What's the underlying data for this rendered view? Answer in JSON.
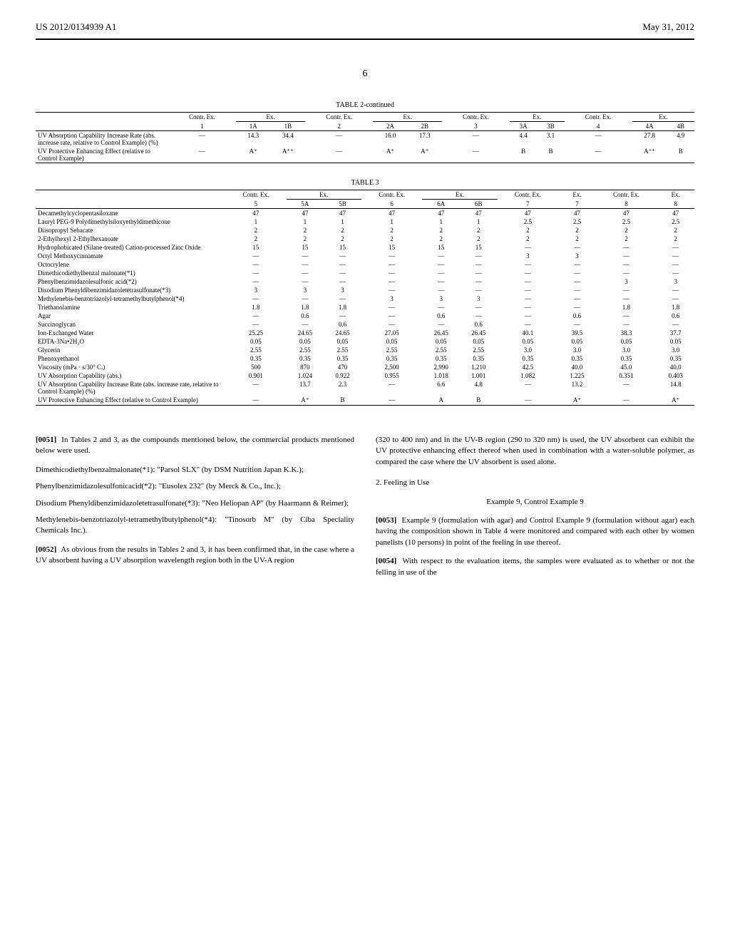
{
  "header": {
    "patent_number": "US 2012/0134939 A1",
    "date": "May 31, 2012",
    "page": "6"
  },
  "table2": {
    "title": "TABLE 2-continued",
    "group_headers": [
      "Contr. Ex.",
      "Ex.",
      "Contr. Ex.",
      "Ex.",
      "Contr. Ex.",
      "Ex.",
      "Contr. Ex.",
      "Ex."
    ],
    "col_nums": [
      "1",
      "1A",
      "1B",
      "2",
      "2A",
      "2B",
      "3",
      "3A",
      "3B",
      "4",
      "4A",
      "4B"
    ],
    "rows": [
      {
        "label": "UV Absorption Capability Increase Rate (abs. increase rate, relative to Control Example) (%)",
        "values": [
          "—",
          "14.3",
          "34.4",
          "—",
          "16.0",
          "17.3",
          "—",
          "4.4",
          "3.1",
          "—",
          "27.8",
          "4.9"
        ]
      },
      {
        "label": "UV Protective Enhancing Effect (relative to Control Example)",
        "values": [
          "—",
          "A⁺",
          "A⁺⁺",
          "—",
          "A⁺",
          "A⁺",
          "—",
          "B",
          "B",
          "—",
          "A⁺⁺",
          "B"
        ]
      }
    ]
  },
  "table3": {
    "title": "TABLE 3",
    "group_headers": [
      "Contr. Ex.",
      "Ex.",
      "Contr. Ex.",
      "Ex.",
      "Contr. Ex.",
      "Ex.",
      "Contr. Ex.",
      "Ex."
    ],
    "col_nums": [
      "5",
      "5A",
      "5B",
      "6",
      "6A",
      "6B",
      "7",
      "7",
      "8",
      "8"
    ],
    "rows": [
      {
        "label": "Decamethylcyclopentasiloxane",
        "values": [
          "47",
          "47",
          "47",
          "47",
          "47",
          "47",
          "47",
          "47",
          "47",
          "47"
        ]
      },
      {
        "label": "Lauryl PEG-9 Polydimethylsiloxyethyldimethicone",
        "values": [
          "1",
          "1",
          "1",
          "1",
          "1",
          "1",
          "2.5",
          "2.5",
          "2.5",
          "2.5"
        ]
      },
      {
        "label": "Diisopropyl Sebacate",
        "values": [
          "2",
          "2",
          "2",
          "2",
          "2",
          "2",
          "2",
          "2",
          "2",
          "2"
        ]
      },
      {
        "label": "2-Ethylhexyl 2-Ethylhexanoate",
        "values": [
          "2",
          "2",
          "2",
          "2",
          "2",
          "2",
          "2",
          "2",
          "2",
          "2"
        ]
      },
      {
        "label": "Hydrophobicated (Silane-treated) Cation-processed Zinc Oxide",
        "values": [
          "15",
          "15",
          "15",
          "15",
          "15",
          "15",
          "—",
          "—",
          "—",
          "—"
        ]
      },
      {
        "label": "Octyl Methoxycinnamate",
        "values": [
          "—",
          "—",
          "—",
          "—",
          "—",
          "—",
          "3",
          "3",
          "—",
          "—"
        ]
      },
      {
        "label": "Octocrylene",
        "values": [
          "—",
          "—",
          "—",
          "—",
          "—",
          "—",
          "—",
          "—",
          "—",
          "—"
        ]
      },
      {
        "label": "Dimethicodiethylbenzal malonate(*1)",
        "values": [
          "—",
          "—",
          "—",
          "—",
          "—",
          "—",
          "—",
          "—",
          "—",
          "—"
        ]
      },
      {
        "label": "Phenylbenzimidazolesulfonic acid(*2)",
        "values": [
          "—",
          "—",
          "—",
          "—",
          "—",
          "—",
          "—",
          "—",
          "3",
          "3"
        ]
      },
      {
        "label": "Disodium Phenyldibenzimidazoletetrasulfonate(*3)",
        "values": [
          "3",
          "3",
          "3",
          "—",
          "—",
          "—",
          "—",
          "—",
          "—",
          "—"
        ]
      },
      {
        "label": "Methylenebis-benzotriazolyl-tetramethylbutylphenol(*4)",
        "values": [
          "—",
          "—",
          "—",
          "3",
          "3",
          "3",
          "—",
          "—",
          "—",
          "—"
        ]
      },
      {
        "label": "Triethanolamine",
        "values": [
          "1.8",
          "1.8",
          "1.8",
          "—",
          "—",
          "—",
          "—",
          "—",
          "1.8",
          "1.8"
        ]
      },
      {
        "label": "Agar",
        "values": [
          "—",
          "0.6",
          "—",
          "—",
          "0.6",
          "—",
          "—",
          "0.6",
          "—",
          "0.6"
        ]
      },
      {
        "label": "Succinoglycan",
        "values": [
          "—",
          "—",
          "0.6",
          "—",
          "—",
          "0.6",
          "—",
          "—",
          "—",
          "—"
        ]
      },
      {
        "label": "Ion-Exchanged Water",
        "values": [
          "25.25",
          "24.65",
          "24.65",
          "27.05",
          "26.45",
          "26.45",
          "40.1",
          "39.5",
          "38.3",
          "37.7"
        ]
      },
      {
        "label": "EDTA-3Na•2H₂O",
        "values": [
          "0.05",
          "0.05",
          "0.05",
          "0.05",
          "0.05",
          "0.05",
          "0.05",
          "0.05",
          "0.05",
          "0.05"
        ]
      },
      {
        "label": "Glycerin",
        "values": [
          "2.55",
          "2.55",
          "2.55",
          "2.55",
          "2.55",
          "2.55",
          "3.0",
          "3.0",
          "3.0",
          "3.0"
        ]
      },
      {
        "label": "Phenoxyethanol",
        "values": [
          "0.35",
          "0.35",
          "0.35",
          "0.35",
          "0.35",
          "0.35",
          "0.35",
          "0.35",
          "0.35",
          "0.35"
        ]
      },
      {
        "label": "Viscosity (mPa · s/30° C.)",
        "values": [
          "500",
          "870",
          "470",
          "2,500",
          "2,990",
          "1,210",
          "42.5",
          "40.0",
          "45.0",
          "40.0"
        ]
      },
      {
        "label": "UV Absorption Capability (abs.)",
        "values": [
          "0.901",
          "1.024",
          "0.922",
          "0.955",
          "1.018",
          "1.001",
          "1.082",
          "1.225",
          "0.351",
          "0.403"
        ]
      },
      {
        "label": "UV Absorption Capability Increase Rate (abs. increase rate, relative to Control Example) (%)",
        "values": [
          "—",
          "13.7",
          "2.3",
          "—",
          "6.6",
          "4.8",
          "—",
          "13.2",
          "—",
          "14.8"
        ]
      },
      {
        "label": "UV Protective Enhancing Effect (relative to Control Example)",
        "values": [
          "—",
          "A⁺",
          "B",
          "—",
          "A",
          "B",
          "—",
          "A⁺",
          "—",
          "A⁺"
        ]
      }
    ]
  },
  "body": {
    "p0051": "In Tables 2 and 3, as the compounds mentioned below, the commercial products mentioned below were used.",
    "compound1": "Dimethicodiethylbenzalmalonate(*1): \"Parsol SLX\" (by DSM Nutrition Japan K.K.);",
    "compound2": "Phenylbenzimidazolesulfonicacid(*2): \"Eusolex 232\" (by Merck & Co., Inc.);",
    "compound3": "Disodium Phenyldibenzimidazoletetrasulfonate(*3): \"Neo Heliopan AP\" (by Haarmann & Reimer);",
    "compound4": "Methylenebis-benzotriazolyl-tetramethylbutylphenol(*4): \"Tinosorb M\" (by Ciba Speciality Chemicals Inc.).",
    "p0052": "As obvious from the results in Tables 2 and 3, it has been confirmed that, in the case where a UV absorbent having a UV absorption wavelength region both in the UV-A region",
    "right_top": "(320 to 400 nm) and in the UV-B region (290 to 320 nm) is used, the UV absorbent can exhibit the UV protective enhancing effect thereof when used in combination with a water-soluble polymer, as compared the case where the UV absorbent is used alone.",
    "section2": "2. Feeling in Use",
    "example_title": "Example 9, Control Example 9",
    "p0053": "Example 9 (formulation with agar) and Control Example 9 (formulation without agar) each having the composition shown in Table 4 were monitored and compared with each other by women panelists (10 persons) in point of the feeling in use thereof.",
    "p0054": "With respect to the evaluation items, the samples were evaluated as to whether or not the felling in use of the"
  }
}
